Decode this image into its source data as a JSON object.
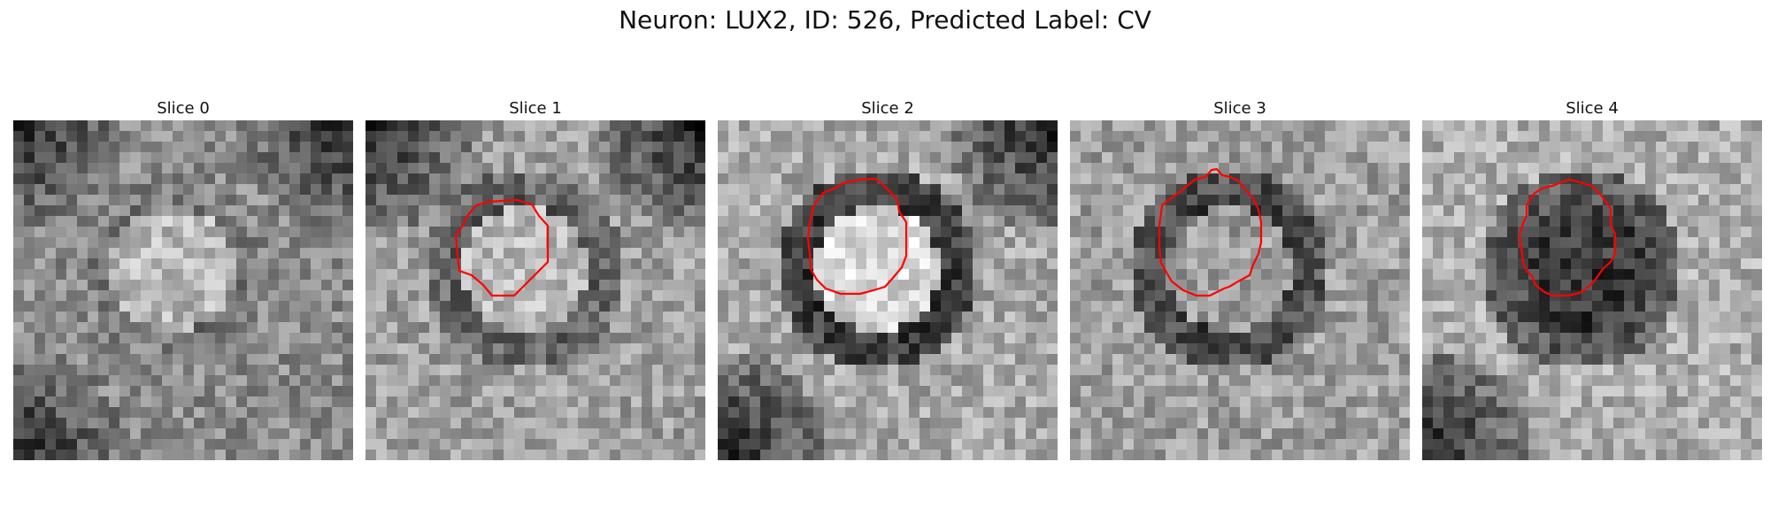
{
  "figure": {
    "title": "Neuron: LUX2, ID: 526, Predicted Label: CV",
    "contour_color": "#ff0000",
    "colormap": "gray",
    "slices": [
      {
        "title": "Slice 0",
        "has_contour": false,
        "seed": 11,
        "center_tone": 0.72,
        "ring_tone": 0.45,
        "bg_tone": 0.55,
        "dark_corners": [
          "tl",
          "tr",
          "bl"
        ]
      },
      {
        "title": "Slice 1",
        "has_contour": true,
        "seed": 23,
        "center_tone": 0.72,
        "ring_tone": 0.35,
        "bg_tone": 0.62,
        "dark_corners": [
          "tl",
          "tr"
        ]
      },
      {
        "title": "Slice 2",
        "has_contour": true,
        "seed": 37,
        "center_tone": 0.85,
        "ring_tone": 0.2,
        "bg_tone": 0.66,
        "dark_corners": [
          "bl",
          "tr"
        ]
      },
      {
        "title": "Slice 3",
        "has_contour": true,
        "seed": 49,
        "center_tone": 0.62,
        "ring_tone": 0.25,
        "bg_tone": 0.62,
        "dark_corners": []
      },
      {
        "title": "Slice 4",
        "has_contour": true,
        "seed": 61,
        "center_tone": 0.22,
        "ring_tone": 0.3,
        "bg_tone": 0.68,
        "dark_corners": [
          "bl"
        ]
      }
    ]
  }
}
